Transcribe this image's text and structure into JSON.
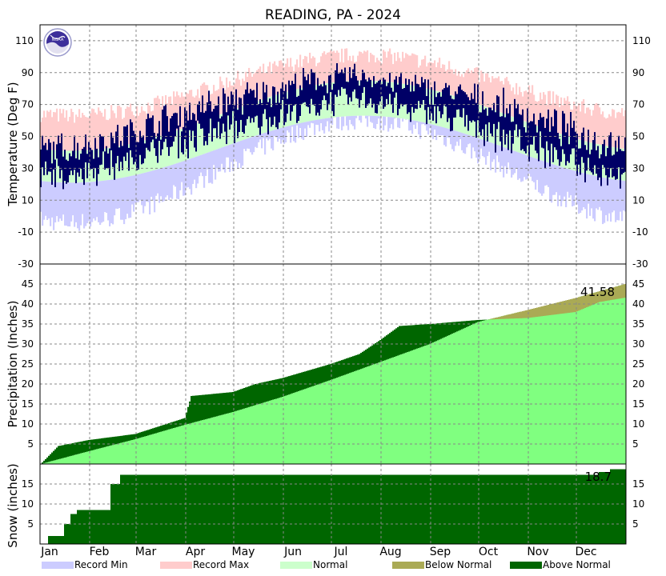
{
  "chart_data": {
    "type": "area",
    "title": "READING, PA - 2024",
    "months": [
      "Jan",
      "Feb",
      "Mar",
      "Apr",
      "May",
      "Jun",
      "Jul",
      "Aug",
      "Sep",
      "Oct",
      "Nov",
      "Dec"
    ],
    "legend": {
      "placement": "bottom",
      "items": [
        {
          "label": "Record Min",
          "color": "#ccccff"
        },
        {
          "label": "Record Max",
          "color": "#ffcccc"
        },
        {
          "label": "Normal",
          "color": "#ccffcc"
        },
        {
          "label": "Below Normal",
          "color": "#aaaa55"
        },
        {
          "label": "Above Normal",
          "color": "#006600"
        }
      ]
    },
    "colors": {
      "actual_temp": "#000066",
      "normal_precip": "#80ff80",
      "above_normal": "#006600",
      "below_normal": "#aaaa55",
      "snow": "#006600"
    },
    "temperature": {
      "ylabel": "Temperature (Deg F)",
      "ylim": [
        -30,
        120
      ],
      "ticks": [
        -30,
        -10,
        10,
        30,
        50,
        70,
        90,
        110
      ],
      "grid": true,
      "monthly_actual_range": [
        {
          "month": "Jan",
          "low": 12,
          "high": 56
        },
        {
          "month": "Feb",
          "low": 18,
          "high": 62
        },
        {
          "month": "Mar",
          "low": 28,
          "high": 74
        },
        {
          "month": "Apr",
          "low": 35,
          "high": 85
        },
        {
          "month": "May",
          "low": 45,
          "high": 90
        },
        {
          "month": "Jun",
          "low": 55,
          "high": 97
        },
        {
          "month": "Jul",
          "low": 63,
          "high": 100
        },
        {
          "month": "Aug",
          "low": 56,
          "high": 94
        },
        {
          "month": "Sep",
          "low": 48,
          "high": 90
        },
        {
          "month": "Oct",
          "low": 35,
          "high": 83
        },
        {
          "month": "Nov",
          "low": 24,
          "high": 72
        },
        {
          "month": "Dec",
          "low": 12,
          "high": 62
        }
      ]
    },
    "precipitation": {
      "ylabel": "Precipitation (Inches)",
      "ylim": [
        0,
        50
      ],
      "ticks": [
        5,
        10,
        15,
        20,
        25,
        30,
        35,
        40,
        45
      ],
      "grid": true,
      "annotation": "41.58",
      "cumulative_actual": [
        {
          "day": 1,
          "value": 0
        },
        {
          "day": 12,
          "value": 4.5
        },
        {
          "day": 31,
          "value": 6.0
        },
        {
          "day": 60,
          "value": 7.5
        },
        {
          "day": 91,
          "value": 11.5
        },
        {
          "day": 95,
          "value": 17.0
        },
        {
          "day": 121,
          "value": 18.0
        },
        {
          "day": 135,
          "value": 20.0
        },
        {
          "day": 152,
          "value": 21.5
        },
        {
          "day": 182,
          "value": 25.0
        },
        {
          "day": 200,
          "value": 27.5
        },
        {
          "day": 213,
          "value": 31.0
        },
        {
          "day": 225,
          "value": 34.5
        },
        {
          "day": 244,
          "value": 35.0
        },
        {
          "day": 274,
          "value": 36.0
        },
        {
          "day": 305,
          "value": 36.5
        },
        {
          "day": 335,
          "value": 38.0
        },
        {
          "day": 350,
          "value": 40.5
        },
        {
          "day": 366,
          "value": 41.58
        }
      ],
      "cumulative_normal": [
        {
          "day": 1,
          "value": 0
        },
        {
          "day": 31,
          "value": 3.2
        },
        {
          "day": 60,
          "value": 6.2
        },
        {
          "day": 91,
          "value": 9.8
        },
        {
          "day": 121,
          "value": 13.0
        },
        {
          "day": 152,
          "value": 16.8
        },
        {
          "day": 182,
          "value": 21.0
        },
        {
          "day": 213,
          "value": 25.5
        },
        {
          "day": 244,
          "value": 30.0
        },
        {
          "day": 274,
          "value": 35.5
        },
        {
          "day": 305,
          "value": 38.5
        },
        {
          "day": 335,
          "value": 41.5
        },
        {
          "day": 366,
          "value": 45.0
        }
      ]
    },
    "snow": {
      "ylabel": "Snow (inches)",
      "ylim": [
        0,
        20
      ],
      "ticks": [
        5,
        10,
        15
      ],
      "grid": true,
      "annotation": "18.7",
      "cumulative_actual": [
        {
          "day": 1,
          "value": 0
        },
        {
          "day": 6,
          "value": 2.0
        },
        {
          "day": 16,
          "value": 5.0
        },
        {
          "day": 20,
          "value": 7.5
        },
        {
          "day": 24,
          "value": 8.5
        },
        {
          "day": 45,
          "value": 15.0
        },
        {
          "day": 51,
          "value": 17.3
        },
        {
          "day": 350,
          "value": 18.0
        },
        {
          "day": 357,
          "value": 18.7
        },
        {
          "day": 366,
          "value": 18.7
        }
      ]
    }
  }
}
